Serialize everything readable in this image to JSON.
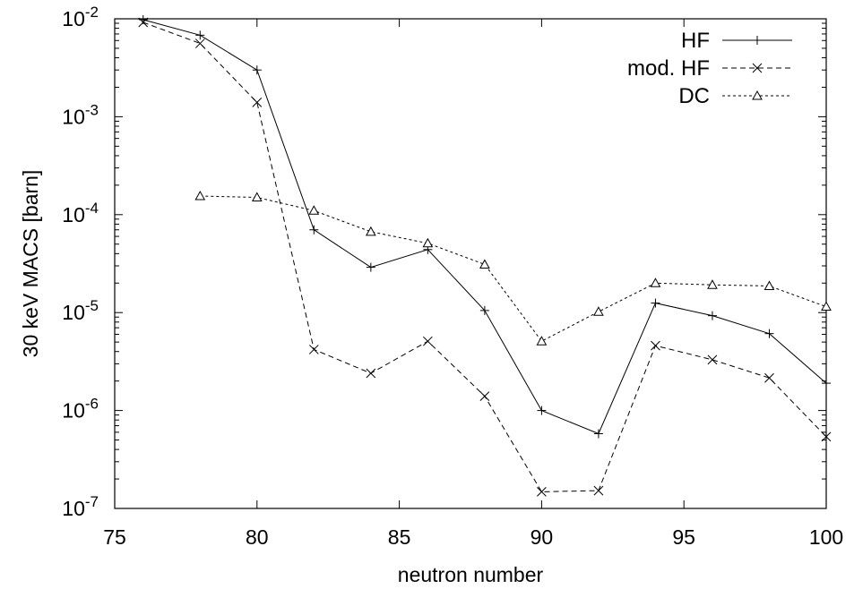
{
  "chart_data": {
    "type": "line",
    "xlabel": "neutron number",
    "ylabel": "30 keV MACS [barn]",
    "xlim": [
      75,
      100
    ],
    "ylim": [
      1e-07,
      0.01
    ],
    "yscale": "log",
    "grid": false,
    "legend_position": "top-right",
    "x_ticks": [
      "75",
      "80",
      "85",
      "90",
      "95",
      "100"
    ],
    "y_ticks": [
      {
        "base": "10",
        "exp": "-7"
      },
      {
        "base": "10",
        "exp": "-6"
      },
      {
        "base": "10",
        "exp": "-5"
      },
      {
        "base": "10",
        "exp": "-4"
      },
      {
        "base": "10",
        "exp": "-3"
      },
      {
        "base": "10",
        "exp": "-2"
      }
    ],
    "series": [
      {
        "name": "HF",
        "marker": "plus",
        "dash": "solid",
        "x": [
          76,
          78,
          80,
          82,
          84,
          86,
          88,
          90,
          92,
          94,
          96,
          98,
          100
        ],
        "y": [
          0.0098,
          0.0068,
          0.003,
          7e-05,
          2.9e-05,
          4.4e-05,
          1.05e-05,
          1e-06,
          5.8e-07,
          1.25e-05,
          9.3e-06,
          6.1e-06,
          1.9e-06
        ]
      },
      {
        "name": "mod. HF",
        "marker": "cross",
        "dash": "dashed",
        "x": [
          76,
          78,
          80,
          82,
          84,
          86,
          88,
          90,
          92,
          94,
          96,
          98,
          100
        ],
        "y": [
          0.0092,
          0.0056,
          0.0014,
          4.2e-06,
          2.4e-06,
          5.1e-06,
          1.4e-06,
          1.48e-07,
          1.52e-07,
          4.6e-06,
          3.3e-06,
          2.15e-06,
          5.4e-07
        ]
      },
      {
        "name": "DC",
        "marker": "triangle",
        "dash": "dotted",
        "x": [
          78,
          80,
          82,
          84,
          86,
          88,
          90,
          92,
          94,
          96,
          98,
          100
        ],
        "y": [
          0.000155,
          0.00015,
          0.00011,
          6.7e-05,
          5.1e-05,
          3.1e-05,
          5.1e-06,
          1.02e-05,
          2e-05,
          1.92e-05,
          1.87e-05,
          1.15e-05
        ]
      }
    ]
  }
}
